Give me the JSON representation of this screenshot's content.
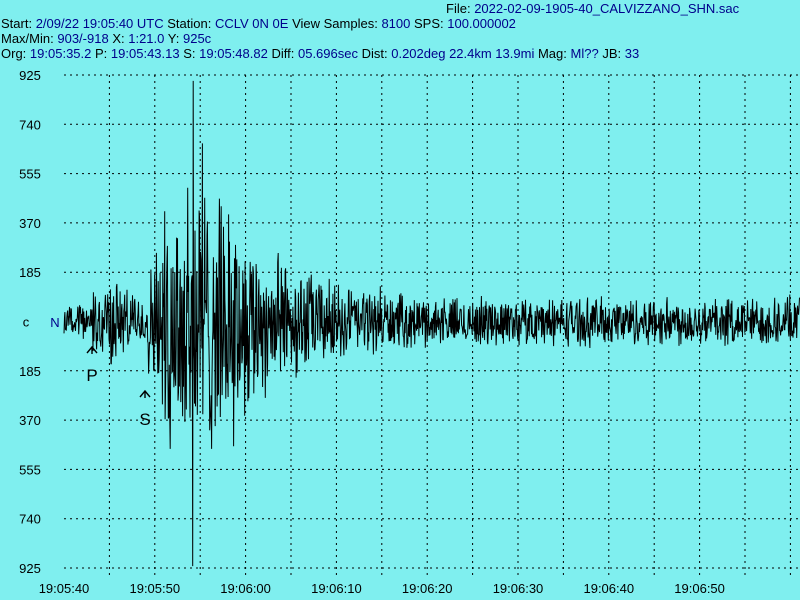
{
  "header": {
    "file_label": "File:",
    "file_value": "2022-02-09-1905-40_CALVIZZANO_SHN.sac",
    "line1": [
      {
        "k": "Start:",
        "v": "2/09/22 19:05:40 UTC"
      },
      {
        "k": "Station:",
        "v": "CCLV 0N 0E"
      },
      {
        "k": "View Samples:",
        "v": "8100"
      },
      {
        "k": "SPS:",
        "v": "100.000002"
      }
    ],
    "line2": [
      {
        "k": "Max/Min:",
        "v": "903/-918"
      },
      {
        "k": "X:",
        "v": "1:21.0"
      },
      {
        "k": "Y:",
        "v": "925c"
      }
    ],
    "line3": [
      {
        "k": "Org:",
        "v": "19:05:35.2"
      },
      {
        "k": "P:",
        "v": "19:05:43.13"
      },
      {
        "k": "S:",
        "v": "19:05:48.82"
      },
      {
        "k": "Diff:",
        "v": "05.696sec"
      },
      {
        "k": "Dist:",
        "v": "0.202deg 22.4km 13.9mi"
      },
      {
        "k": "Mag:",
        "v": "Ml??"
      },
      {
        "k": "JB:",
        "v": "33"
      }
    ]
  },
  "chart_data": {
    "type": "line",
    "xlabel": "",
    "ylabel": "",
    "x_tick_labels": [
      "19:05:40",
      "19:05:50",
      "19:06:00",
      "19:06:10",
      "19:06:20",
      "19:06:30",
      "19:06:40",
      "19:06:50"
    ],
    "y_tick_labels": [
      "925",
      "740",
      "555",
      "370",
      "185",
      "c",
      "185",
      "370",
      "555",
      "740",
      "925"
    ],
    "y_range": [
      -925,
      925
    ],
    "x_range_seconds": [
      0,
      81
    ],
    "center_label": "c",
    "channel_label": "N",
    "grid": true,
    "picks": [
      {
        "label": "P",
        "time": "19:05:43.13"
      },
      {
        "label": "S",
        "time": "19:05:48.82"
      }
    ],
    "samples": 8100,
    "max": 903,
    "min": -918,
    "colors": {
      "background": "#7fefef",
      "trace": "#000000",
      "grid": "#000000",
      "header_value": "#00008b",
      "channel_label": "#00008b"
    }
  }
}
